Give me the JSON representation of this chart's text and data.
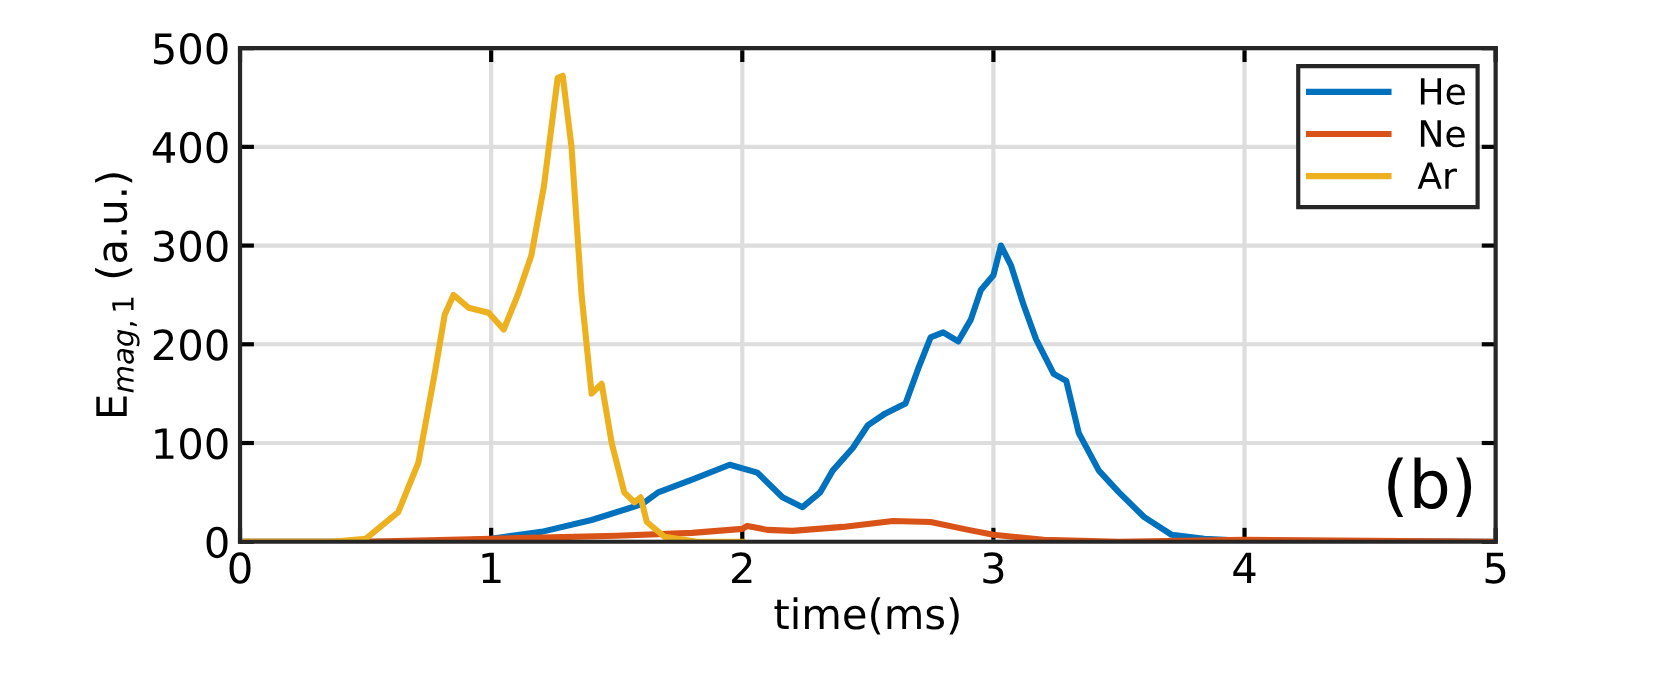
{
  "chart_data": {
    "type": "line",
    "xlabel": "time(ms)",
    "ylabel": "E$_{mag,1}$ (a.u.)",
    "xlim": [
      0,
      5
    ],
    "ylim": [
      0,
      500
    ],
    "xticks": [
      0,
      1,
      2,
      3,
      4,
      5
    ],
    "yticks": [
      0,
      100,
      200,
      300,
      400,
      500
    ],
    "grid": true,
    "legend": "top right",
    "annotations": [
      "(b)"
    ],
    "series": [
      {
        "name": "He",
        "color": "#0072bd",
        "x": [
          0,
          0.8,
          1.0,
          1.2,
          1.4,
          1.6,
          1.665,
          1.8,
          1.95,
          2.06,
          2.16,
          2.24,
          2.31,
          2.36,
          2.44,
          2.5,
          2.57,
          2.65,
          2.7,
          2.75,
          2.8,
          2.86,
          2.91,
          2.95,
          3.0,
          3.03,
          3.07,
          3.12,
          3.17,
          3.24,
          3.29,
          3.34,
          3.42,
          3.5,
          3.6,
          3.71,
          3.84,
          4.0,
          5.0
        ],
        "values": [
          0,
          0,
          3,
          10,
          22,
          38,
          50,
          63,
          78,
          70,
          45,
          35,
          50,
          72,
          95,
          118,
          130,
          140,
          175,
          207,
          212,
          203,
          225,
          255,
          270,
          300,
          280,
          240,
          205,
          170,
          163,
          110,
          72,
          50,
          25,
          7,
          3,
          1,
          0
        ]
      },
      {
        "name": "Ne",
        "color": "#d95319",
        "x": [
          0,
          0.5,
          1.0,
          1.5,
          1.8,
          2.0,
          2.02,
          2.1,
          2.2,
          2.4,
          2.6,
          2.75,
          2.9,
          3.0,
          3.2,
          3.5,
          4.0,
          4.5,
          5.0
        ],
        "values": [
          0,
          0,
          3,
          6,
          9,
          13,
          16,
          12,
          11,
          15,
          21,
          20,
          12,
          7,
          2,
          0,
          2,
          1,
          0
        ]
      },
      {
        "name": "Ar",
        "color": "#edb120",
        "x": [
          0,
          0.365,
          0.5,
          0.63,
          0.71,
          0.775,
          0.815,
          0.85,
          0.91,
          0.99,
          1.05,
          1.106,
          1.16,
          1.21,
          1.265,
          1.285,
          1.32,
          1.36,
          1.4,
          1.44,
          1.48,
          1.53,
          1.57,
          1.595,
          1.62,
          1.69,
          1.82,
          2.0
        ],
        "values": [
          0,
          0,
          3,
          30,
          80,
          170,
          230,
          250,
          237,
          232,
          215,
          250,
          290,
          360,
          470,
          472,
          400,
          250,
          150,
          160,
          100,
          50,
          40,
          45,
          20,
          5,
          0,
          0
        ]
      }
    ]
  }
}
